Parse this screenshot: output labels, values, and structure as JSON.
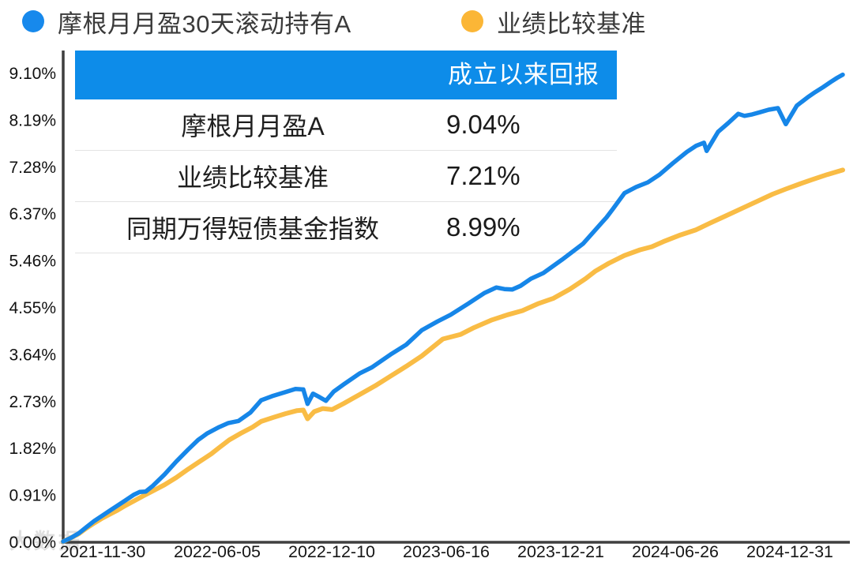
{
  "legend": {
    "items": [
      {
        "label": "摩根月月盈30天滚动持有A",
        "color": "#1789EC"
      },
      {
        "label": "业绩比较基准",
        "color": "#FBB636"
      }
    ]
  },
  "table": {
    "header": "成立以来回报",
    "header_bg": "#0D8CE9",
    "rows": [
      {
        "label": "摩根月月盈A",
        "value": "9.04%"
      },
      {
        "label": "业绩比较基准",
        "value": "7.21%"
      },
      {
        "label": "同期万得短债基金指数",
        "value": "8.99%"
      }
    ]
  },
  "watermark": "大数据",
  "chart_data": {
    "type": "line",
    "title": "",
    "xlabel": "",
    "ylabel": "",
    "grid": false,
    "legend_position": "top",
    "ylim": [
      0,
      9.1
    ],
    "y_tick_labels": [
      "9.10%",
      "8.19%",
      "7.28%",
      "6.37%",
      "5.46%",
      "4.55%",
      "3.64%",
      "2.73%",
      "1.82%",
      "0.91%",
      "0.00%"
    ],
    "x_tick_labels": [
      "2021-11-30",
      "2022-06-05",
      "2022-12-10",
      "2023-06-16",
      "2023-12-21",
      "2024-06-26",
      "2024-12-31"
    ],
    "x_range": [
      "2021-11-30",
      "2024-12-31"
    ],
    "axis_color": "#3f3f3f",
    "series": [
      {
        "name": "摩根月月盈30天滚动持有A",
        "color": "#1686E8",
        "end_value_pct": 9.04,
        "points": [
          [
            0,
            0
          ],
          [
            0.01,
            0.07
          ],
          [
            0.02,
            0.16
          ],
          [
            0.03,
            0.28
          ],
          [
            0.04,
            0.4
          ],
          [
            0.05,
            0.5
          ],
          [
            0.06,
            0.6
          ],
          [
            0.07,
            0.7
          ],
          [
            0.08,
            0.8
          ],
          [
            0.091,
            0.91
          ],
          [
            0.098,
            0.96
          ],
          [
            0.106,
            0.97
          ],
          [
            0.115,
            1.08
          ],
          [
            0.13,
            1.3
          ],
          [
            0.145,
            1.55
          ],
          [
            0.16,
            1.78
          ],
          [
            0.173,
            1.97
          ],
          [
            0.185,
            2.1
          ],
          [
            0.2,
            2.22
          ],
          [
            0.212,
            2.3
          ],
          [
            0.225,
            2.34
          ],
          [
            0.24,
            2.5
          ],
          [
            0.254,
            2.74
          ],
          [
            0.268,
            2.82
          ],
          [
            0.285,
            2.9
          ],
          [
            0.298,
            2.96
          ],
          [
            0.308,
            2.95
          ],
          [
            0.3135,
            2.67
          ],
          [
            0.3205,
            2.87
          ],
          [
            0.329,
            2.8
          ],
          [
            0.337,
            2.73
          ],
          [
            0.347,
            2.91
          ],
          [
            0.36,
            3.05
          ],
          [
            0.38,
            3.26
          ],
          [
            0.396,
            3.38
          ],
          [
            0.42,
            3.63
          ],
          [
            0.44,
            3.82
          ],
          [
            0.46,
            4.1
          ],
          [
            0.48,
            4.27
          ],
          [
            0.497,
            4.4
          ],
          [
            0.52,
            4.62
          ],
          [
            0.54,
            4.82
          ],
          [
            0.5555,
            4.93
          ],
          [
            0.566,
            4.9
          ],
          [
            0.576,
            4.89
          ],
          [
            0.5866,
            4.96
          ],
          [
            0.6,
            5.1
          ],
          [
            0.616,
            5.21
          ],
          [
            0.64,
            5.47
          ],
          [
            0.667,
            5.78
          ],
          [
            0.697,
            6.29
          ],
          [
            0.705,
            6.45
          ],
          [
            0.72,
            6.76
          ],
          [
            0.735,
            6.88
          ],
          [
            0.75,
            6.97
          ],
          [
            0.765,
            7.12
          ],
          [
            0.782,
            7.34
          ],
          [
            0.8,
            7.56
          ],
          [
            0.812,
            7.68
          ],
          [
            0.822,
            7.74
          ],
          [
            0.8254,
            7.58
          ],
          [
            0.84,
            7.95
          ],
          [
            0.853,
            8.12
          ],
          [
            0.866,
            8.3
          ],
          [
            0.874,
            8.26
          ],
          [
            0.884,
            8.29
          ],
          [
            0.8934,
            8.33
          ],
          [
            0.905,
            8.38
          ],
          [
            0.9168,
            8.41
          ],
          [
            0.9269,
            8.1
          ],
          [
            0.9411,
            8.46
          ],
          [
            0.955,
            8.62
          ],
          [
            0.9645,
            8.72
          ],
          [
            0.975,
            8.82
          ],
          [
            0.9848,
            8.92
          ],
          [
            0.993,
            9.0
          ],
          [
            1,
            9.06
          ]
        ]
      },
      {
        "name": "业绩比较基准",
        "color": "#F9BC45",
        "end_value_pct": 7.21,
        "points": [
          [
            0,
            0
          ],
          [
            0.01,
            0.07
          ],
          [
            0.02,
            0.15
          ],
          [
            0.03,
            0.26
          ],
          [
            0.04,
            0.36
          ],
          [
            0.05,
            0.45
          ],
          [
            0.06,
            0.53
          ],
          [
            0.07,
            0.61
          ],
          [
            0.08,
            0.7
          ],
          [
            0.09,
            0.78
          ],
          [
            0.102,
            0.88
          ],
          [
            0.115,
            0.98
          ],
          [
            0.13,
            1.1
          ],
          [
            0.145,
            1.24
          ],
          [
            0.16,
            1.4
          ],
          [
            0.175,
            1.55
          ],
          [
            0.19,
            1.7
          ],
          [
            0.2,
            1.82
          ],
          [
            0.213,
            1.97
          ],
          [
            0.228,
            2.1
          ],
          [
            0.243,
            2.22
          ],
          [
            0.254,
            2.33
          ],
          [
            0.27,
            2.41
          ],
          [
            0.285,
            2.48
          ],
          [
            0.3,
            2.54
          ],
          [
            0.308,
            2.55
          ],
          [
            0.3135,
            2.38
          ],
          [
            0.322,
            2.52
          ],
          [
            0.333,
            2.58
          ],
          [
            0.345,
            2.56
          ],
          [
            0.36,
            2.68
          ],
          [
            0.38,
            2.85
          ],
          [
            0.4,
            3.02
          ],
          [
            0.42,
            3.21
          ],
          [
            0.44,
            3.4
          ],
          [
            0.46,
            3.6
          ],
          [
            0.487,
            3.93
          ],
          [
            0.51,
            4.02
          ],
          [
            0.527,
            4.15
          ],
          [
            0.55,
            4.3
          ],
          [
            0.57,
            4.4
          ],
          [
            0.589,
            4.48
          ],
          [
            0.61,
            4.62
          ],
          [
            0.629,
            4.72
          ],
          [
            0.65,
            4.9
          ],
          [
            0.67,
            5.1
          ],
          [
            0.683,
            5.25
          ],
          [
            0.7,
            5.4
          ],
          [
            0.72,
            5.55
          ],
          [
            0.74,
            5.66
          ],
          [
            0.755,
            5.72
          ],
          [
            0.77,
            5.82
          ],
          [
            0.792,
            5.95
          ],
          [
            0.812,
            6.05
          ],
          [
            0.83,
            6.18
          ],
          [
            0.85,
            6.32
          ],
          [
            0.87,
            6.46
          ],
          [
            0.89,
            6.6
          ],
          [
            0.91,
            6.74
          ],
          [
            0.927,
            6.84
          ],
          [
            0.945,
            6.94
          ],
          [
            0.96,
            7.02
          ],
          [
            0.98,
            7.12
          ],
          [
            1,
            7.21
          ]
        ]
      }
    ]
  }
}
